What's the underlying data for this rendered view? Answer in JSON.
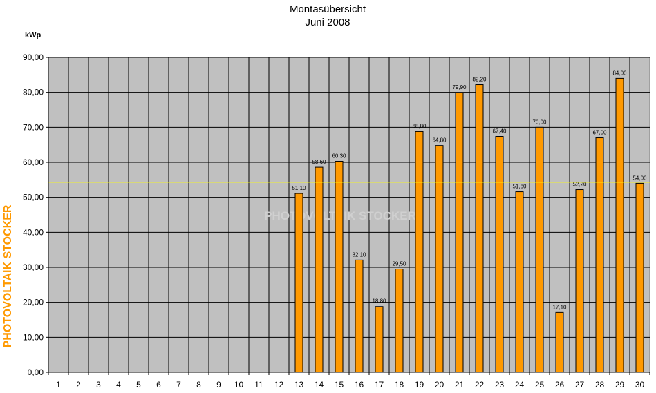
{
  "chart_data": {
    "type": "bar",
    "title": "Montasübersicht",
    "subtitle": "Juni 2008",
    "ylabel": "kWp",
    "xlabel": "",
    "ylim": [
      0,
      90
    ],
    "ytick_step": 10,
    "ytick_labels": [
      "0,00",
      "10,00",
      "20,00",
      "30,00",
      "40,00",
      "50,00",
      "60,00",
      "70,00",
      "80,00",
      "90,00"
    ],
    "categories": [
      "1",
      "2",
      "3",
      "4",
      "5",
      "6",
      "7",
      "8",
      "9",
      "10",
      "11",
      "12",
      "13",
      "14",
      "15",
      "16",
      "17",
      "18",
      "19",
      "20",
      "21",
      "22",
      "23",
      "24",
      "25",
      "26",
      "27",
      "28",
      "29",
      "30"
    ],
    "values": [
      null,
      null,
      null,
      null,
      null,
      null,
      null,
      null,
      null,
      null,
      null,
      null,
      51.1,
      58.6,
      60.3,
      32.1,
      18.8,
      29.5,
      68.8,
      64.8,
      79.9,
      82.2,
      67.4,
      51.6,
      70.0,
      17.1,
      52.2,
      67.0,
      84.0,
      54.0
    ],
    "value_labels": [
      "",
      "",
      "",
      "",
      "",
      "",
      "",
      "",
      "",
      "",
      "",
      "",
      "51,10",
      "58,60",
      "60,30",
      "32,10",
      "18,80",
      "29,50",
      "68,80",
      "64,80",
      "79,90",
      "82,20",
      "67,40",
      "51,60",
      "70,00",
      "17,10",
      "52,20",
      "67,00",
      "84,00",
      "54,00"
    ],
    "average_line": 54.3,
    "grid": true,
    "colors": {
      "bar": "#ff9900",
      "bar_edge": "#000000",
      "plot_background": "#c0c0c0",
      "gridline": "#000000",
      "average_line": "#ffff00"
    }
  },
  "branding": {
    "side_text": "PHOTOVOLTAIK STOCKER",
    "watermark": "PHOTOVOLTAIK STOCKER"
  }
}
